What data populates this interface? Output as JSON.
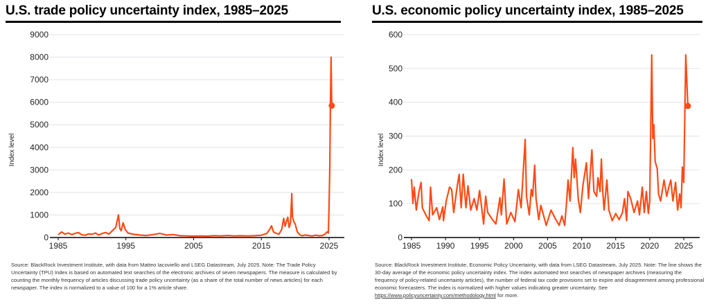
{
  "chart_data": [
    {
      "type": "line",
      "title": "U.S. trade policy uncertainty index, 1985–2025",
      "ylabel": "Index level",
      "xlabel": "",
      "xlim": [
        1985,
        2027
      ],
      "ylim": [
        0,
        9000
      ],
      "xticks": [
        1985,
        1995,
        2005,
        2015,
        2025
      ],
      "yticks": [
        0,
        1000,
        2000,
        3000,
        4000,
        5000,
        6000,
        7000,
        8000,
        9000
      ],
      "grid": true,
      "line_color": "#ff4a14",
      "last_point_marker": true,
      "x": [
        1985,
        1985.5,
        1986,
        1986.5,
        1987,
        1987.5,
        1988,
        1988.5,
        1989,
        1989.5,
        1990,
        1990.5,
        1991,
        1991.5,
        1992,
        1992.5,
        1993,
        1993.5,
        1993.9,
        1994.1,
        1994.3,
        1994.6,
        1994.9,
        1995.3,
        1996,
        1997,
        1998,
        1999,
        2000,
        2001,
        2002,
        2003,
        2004,
        2005,
        2006,
        2007,
        2008,
        2009,
        2010,
        2011,
        2012,
        2013,
        2014,
        2015,
        2015.8,
        2016.2,
        2016.5,
        2016.8,
        2017.2,
        2017.6,
        2018,
        2018.3,
        2018.5,
        2018.7,
        2018.9,
        2019.1,
        2019.3,
        2019.5,
        2019.6,
        2019.8,
        2020,
        2020.3,
        2020.7,
        2021,
        2021.5,
        2022,
        2022.5,
        2023,
        2023.5,
        2024,
        2024.4,
        2024.7,
        2024.9,
        2025.0,
        2025.1,
        2025.2,
        2025.3,
        2025.4
      ],
      "values": [
        120,
        250,
        150,
        200,
        130,
        180,
        220,
        120,
        100,
        160,
        140,
        200,
        110,
        180,
        220,
        150,
        300,
        450,
        1000,
        400,
        300,
        650,
        350,
        200,
        150,
        110,
        90,
        130,
        180,
        110,
        130,
        80,
        70,
        60,
        70,
        60,
        80,
        70,
        90,
        70,
        80,
        70,
        80,
        100,
        180,
        350,
        520,
        250,
        180,
        150,
        350,
        850,
        500,
        700,
        900,
        450,
        650,
        1950,
        900,
        700,
        600,
        250,
        120,
        80,
        110,
        90,
        70,
        100,
        80,
        90,
        150,
        250,
        200,
        1400,
        3000,
        6000,
        8000,
        5850
      ]
    },
    {
      "type": "line",
      "title": "U.S. economic policy uncertainty index, 1985–2025",
      "ylabel": "Index level",
      "xlabel": "",
      "xlim": [
        1985,
        2027
      ],
      "ylim": [
        0,
        600
      ],
      "xticks": [
        1985,
        1990,
        1995,
        2000,
        2005,
        2010,
        2015,
        2020,
        2025
      ],
      "yticks": [
        0,
        100,
        200,
        300,
        400,
        500,
        600
      ],
      "grid": true,
      "line_color": "#ff4a14",
      "last_point_marker": true,
      "x": [
        1985,
        1985.2,
        1985.4,
        1985.7,
        1986.1,
        1986.4,
        1986.6,
        1987.1,
        1987.6,
        1987.8,
        1988.1,
        1988.7,
        1989.1,
        1989.6,
        1989.7,
        1990.1,
        1990.6,
        1990.9,
        1991.2,
        1991.7,
        1992,
        1992.3,
        1992.6,
        1993,
        1993.3,
        1993.7,
        1994.2,
        1994.6,
        1995,
        1995.6,
        1995.9,
        1996.2,
        1996.9,
        1997.4,
        1998,
        1998.2,
        1998.6,
        1999,
        1999.6,
        2000.2,
        2000.7,
        2001.1,
        2001.7,
        2001.9,
        2002.3,
        2002.6,
        2002.8,
        2003.1,
        2003.3,
        2003.7,
        2004,
        2004.8,
        2005.5,
        2006.2,
        2006.7,
        2007.1,
        2007.5,
        2007.8,
        2008,
        2008.3,
        2008.7,
        2008.9,
        2009.1,
        2009.5,
        2009.8,
        2010.2,
        2010.7,
        2011,
        2011.5,
        2011.8,
        2012.2,
        2012.4,
        2012.7,
        2012.9,
        2013.1,
        2013.3,
        2013.7,
        2014,
        2014.5,
        2015,
        2015.5,
        2016,
        2016.3,
        2016.6,
        2016.8,
        2017.2,
        2017.7,
        2018.2,
        2018.5,
        2018.9,
        2019.2,
        2019.5,
        2019.8,
        2020,
        2020.3,
        2020.45,
        2020.6,
        2020.8,
        2021.1,
        2021.3,
        2021.6,
        2022.1,
        2022.5,
        2022.8,
        2023.1,
        2023.4,
        2023.8,
        2024.1,
        2024.4,
        2024.6,
        2024.8,
        2025.0,
        2025.3,
        2025.6
      ],
      "values": [
        173,
        101,
        149,
        81,
        136,
        163,
        88,
        67,
        50,
        149,
        67,
        88,
        53,
        91,
        50,
        108,
        149,
        142,
        74,
        149,
        187,
        88,
        187,
        88,
        153,
        81,
        115,
        81,
        139,
        40,
        122,
        74,
        53,
        40,
        118,
        67,
        173,
        40,
        74,
        47,
        142,
        88,
        290,
        122,
        67,
        142,
        122,
        214,
        115,
        53,
        95,
        36,
        81,
        53,
        36,
        64,
        36,
        108,
        170,
        108,
        266,
        177,
        232,
        115,
        74,
        156,
        221,
        115,
        259,
        136,
        122,
        177,
        136,
        232,
        136,
        81,
        170,
        81,
        50,
        71,
        53,
        74,
        115,
        50,
        136,
        115,
        74,
        108,
        67,
        149,
        74,
        136,
        71,
        108,
        540,
        293,
        334,
        225,
        204,
        129,
        108,
        170,
        122,
        149,
        170,
        108,
        163,
        81,
        129,
        88,
        208,
        163,
        540,
        389
      ]
    }
  ],
  "left": {
    "title": "U.S. trade policy uncertainty index, 1985–2025",
    "ylabel": "Index level",
    "source": "Source: BlackRock Investment Institute, with data from Matteo Iacoviello and LSEG Datastream, July 2025. Note: The Trade Policy Uncertainty (TPU) Index is based on automated text searches of the electronic archives of seven newspapers. The measure is calculated by counting the monthly frequency of articles discussing trade policy uncertainty (as a share of the total number of news articles) for each newspaper. The index is normalized to a value of 100 for a 1% article share."
  },
  "right": {
    "title": "U.S. economic policy uncertainty index, 1985–2025",
    "ylabel": "Index level",
    "source": "Source: BlackRock Investment Institute, Economic Policy Uncertainty, with data from LSEG Datastream, July 2025. Note: The line shows the 30-day average of the economic policy uncertainty index. The index automated text searches of newspaper archives (measuring the frequency of policy-related uncertainty articles), the number of federal tax code provisions set to expire and disagreement among professional economic forecasters. The index is normalized with higher values indicating greater uncertainty. See",
    "link": "https://www.policyuncertainty.com/methodology.html",
    "source_tail": " for more."
  }
}
